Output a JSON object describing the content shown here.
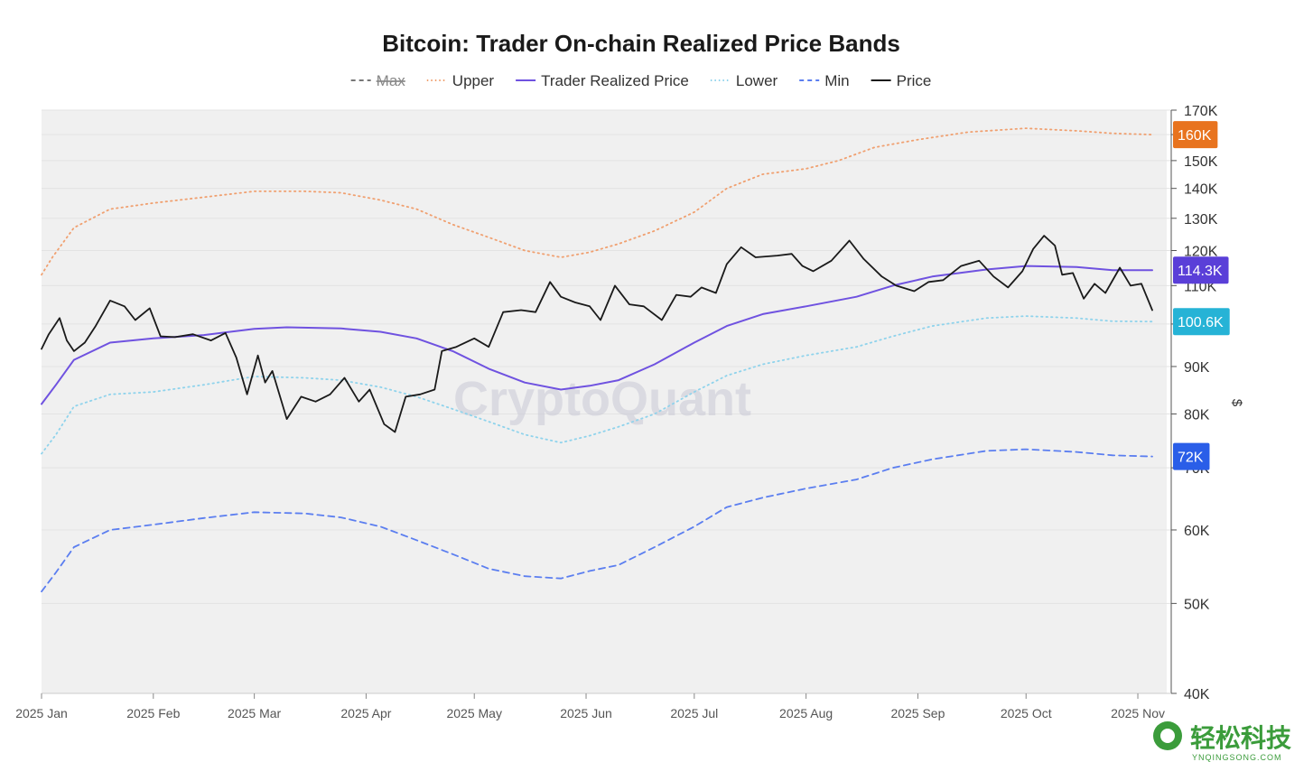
{
  "chart_data": {
    "type": "line",
    "title": "Bitcoin: Trader On-chain Realized Price Bands",
    "ylabel": "$",
    "yscale": "log",
    "ylim": [
      40000,
      170000
    ],
    "xlim": [
      "2025-01-01",
      "2025-11-06"
    ],
    "grid": true,
    "legend_position": "top-center",
    "watermark": "CryptoQuant",
    "x_ticks": [
      "2025 Jan",
      "2025 Feb",
      "2025 Mar",
      "2025 Apr",
      "2025 May",
      "2025 Jun",
      "2025 Jul",
      "2025 Aug",
      "2025 Sep",
      "2025 Oct",
      "2025 Nov"
    ],
    "y_ticks": [
      "170K",
      "160K",
      "150K",
      "140K",
      "130K",
      "120K",
      "110K",
      "100K",
      "90K",
      "80K",
      "70K",
      "60K",
      "50K",
      "40K"
    ],
    "badges": [
      {
        "label": "160K",
        "value": 160000,
        "color": "#e8731e"
      },
      {
        "label": "114.3K",
        "value": 114300,
        "color": "#5a3fd8"
      },
      {
        "label": "100.6K",
        "value": 100600,
        "color": "#26b3d6"
      },
      {
        "label": "72K",
        "value": 72000,
        "color": "#2a5ee8"
      }
    ],
    "series": [
      {
        "name": "Max",
        "color": "#777777",
        "style": "dashed",
        "points": []
      },
      {
        "name": "Upper",
        "color": "#f0a070",
        "style": "dotted",
        "points": [
          [
            "2025-01-01",
            113000
          ],
          [
            "2025-01-04",
            118000
          ],
          [
            "2025-01-10",
            127000
          ],
          [
            "2025-01-20",
            133000
          ],
          [
            "2025-02-01",
            135000
          ],
          [
            "2025-02-15",
            137000
          ],
          [
            "2025-03-01",
            139000
          ],
          [
            "2025-03-15",
            139000
          ],
          [
            "2025-03-25",
            138500
          ],
          [
            "2025-04-05",
            136000
          ],
          [
            "2025-04-15",
            133000
          ],
          [
            "2025-04-25",
            128000
          ],
          [
            "2025-05-05",
            124000
          ],
          [
            "2025-05-15",
            120000
          ],
          [
            "2025-05-25",
            118000
          ],
          [
            "2025-06-02",
            119500
          ],
          [
            "2025-06-10",
            122000
          ],
          [
            "2025-06-20",
            126000
          ],
          [
            "2025-07-01",
            132000
          ],
          [
            "2025-07-10",
            140000
          ],
          [
            "2025-07-20",
            145000
          ],
          [
            "2025-08-01",
            147000
          ],
          [
            "2025-08-10",
            150000
          ],
          [
            "2025-08-20",
            155000
          ],
          [
            "2025-09-01",
            158000
          ],
          [
            "2025-09-15",
            161000
          ],
          [
            "2025-10-01",
            162500
          ],
          [
            "2025-10-15",
            161500
          ],
          [
            "2025-10-25",
            160500
          ],
          [
            "2025-11-05",
            160000
          ]
        ]
      },
      {
        "name": "Trader Realized Price",
        "color": "#6f52e0",
        "style": "solid",
        "points": [
          [
            "2025-01-01",
            82000
          ],
          [
            "2025-01-05",
            86000
          ],
          [
            "2025-01-10",
            91500
          ],
          [
            "2025-01-20",
            95500
          ],
          [
            "2025-02-01",
            96500
          ],
          [
            "2025-02-15",
            97300
          ],
          [
            "2025-03-01",
            98800
          ],
          [
            "2025-03-10",
            99200
          ],
          [
            "2025-03-25",
            98900
          ],
          [
            "2025-04-05",
            98100
          ],
          [
            "2025-04-15",
            96500
          ],
          [
            "2025-04-25",
            93500
          ],
          [
            "2025-05-05",
            89500
          ],
          [
            "2025-05-15",
            86500
          ],
          [
            "2025-05-25",
            85000
          ],
          [
            "2025-06-02",
            85800
          ],
          [
            "2025-06-10",
            87000
          ],
          [
            "2025-06-20",
            90500
          ],
          [
            "2025-07-01",
            95500
          ],
          [
            "2025-07-10",
            99500
          ],
          [
            "2025-07-20",
            102500
          ],
          [
            "2025-08-01",
            104500
          ],
          [
            "2025-08-15",
            107000
          ],
          [
            "2025-08-25",
            110000
          ],
          [
            "2025-09-05",
            112500
          ],
          [
            "2025-09-20",
            114500
          ],
          [
            "2025-10-01",
            115500
          ],
          [
            "2025-10-15",
            115200
          ],
          [
            "2025-10-25",
            114300
          ],
          [
            "2025-11-05",
            114300
          ]
        ]
      },
      {
        "name": "Lower",
        "color": "#8fd3ec",
        "style": "dotted",
        "points": [
          [
            "2025-01-01",
            72500
          ],
          [
            "2025-01-05",
            76000
          ],
          [
            "2025-01-10",
            81500
          ],
          [
            "2025-01-20",
            84000
          ],
          [
            "2025-02-01",
            84500
          ],
          [
            "2025-02-15",
            86000
          ],
          [
            "2025-03-01",
            87800
          ],
          [
            "2025-03-15",
            87500
          ],
          [
            "2025-03-25",
            87000
          ],
          [
            "2025-04-05",
            85500
          ],
          [
            "2025-04-15",
            83500
          ],
          [
            "2025-04-25",
            81000
          ],
          [
            "2025-05-05",
            78500
          ],
          [
            "2025-05-15",
            76000
          ],
          [
            "2025-05-25",
            74500
          ],
          [
            "2025-06-02",
            75800
          ],
          [
            "2025-06-10",
            77500
          ],
          [
            "2025-06-20",
            80000
          ],
          [
            "2025-07-01",
            84500
          ],
          [
            "2025-07-10",
            88000
          ],
          [
            "2025-07-20",
            90500
          ],
          [
            "2025-08-01",
            92500
          ],
          [
            "2025-08-15",
            94500
          ],
          [
            "2025-08-25",
            97000
          ],
          [
            "2025-09-05",
            99500
          ],
          [
            "2025-09-20",
            101500
          ],
          [
            "2025-10-01",
            102000
          ],
          [
            "2025-10-15",
            101500
          ],
          [
            "2025-10-25",
            100700
          ],
          [
            "2025-11-05",
            100600
          ]
        ]
      },
      {
        "name": "Min",
        "color": "#5b7ef0",
        "style": "dashed",
        "points": [
          [
            "2025-01-01",
            51500
          ],
          [
            "2025-01-05",
            54000
          ],
          [
            "2025-01-10",
            57500
          ],
          [
            "2025-01-20",
            60000
          ],
          [
            "2025-02-01",
            60800
          ],
          [
            "2025-02-15",
            61800
          ],
          [
            "2025-03-01",
            62700
          ],
          [
            "2025-03-15",
            62500
          ],
          [
            "2025-03-25",
            61900
          ],
          [
            "2025-04-05",
            60500
          ],
          [
            "2025-04-15",
            58500
          ],
          [
            "2025-04-25",
            56500
          ],
          [
            "2025-05-05",
            54500
          ],
          [
            "2025-05-15",
            53500
          ],
          [
            "2025-05-25",
            53200
          ],
          [
            "2025-06-02",
            54200
          ],
          [
            "2025-06-10",
            55000
          ],
          [
            "2025-06-20",
            57500
          ],
          [
            "2025-07-01",
            60500
          ],
          [
            "2025-07-10",
            63500
          ],
          [
            "2025-07-20",
            65000
          ],
          [
            "2025-08-01",
            66500
          ],
          [
            "2025-08-15",
            68000
          ],
          [
            "2025-08-25",
            70000
          ],
          [
            "2025-09-05",
            71500
          ],
          [
            "2025-09-20",
            73000
          ],
          [
            "2025-10-01",
            73300
          ],
          [
            "2025-10-15",
            72800
          ],
          [
            "2025-10-25",
            72200
          ],
          [
            "2025-11-05",
            72000
          ]
        ]
      },
      {
        "name": "Price",
        "color": "#1a1a1a",
        "style": "solid",
        "points": [
          [
            "2025-01-01",
            94000
          ],
          [
            "2025-01-03",
            97500
          ],
          [
            "2025-01-06",
            101500
          ],
          [
            "2025-01-08",
            96000
          ],
          [
            "2025-01-10",
            93500
          ],
          [
            "2025-01-13",
            95500
          ],
          [
            "2025-01-16",
            99500
          ],
          [
            "2025-01-20",
            106000
          ],
          [
            "2025-01-24",
            104500
          ],
          [
            "2025-01-27",
            101000
          ],
          [
            "2025-01-31",
            104000
          ],
          [
            "2025-02-03",
            97000
          ],
          [
            "2025-02-07",
            96800
          ],
          [
            "2025-02-12",
            97500
          ],
          [
            "2025-02-17",
            96000
          ],
          [
            "2025-02-21",
            97800
          ],
          [
            "2025-02-24",
            92000
          ],
          [
            "2025-02-27",
            84000
          ],
          [
            "2025-03-02",
            92500
          ],
          [
            "2025-03-04",
            86500
          ],
          [
            "2025-03-06",
            89000
          ],
          [
            "2025-03-10",
            79000
          ],
          [
            "2025-03-14",
            83500
          ],
          [
            "2025-03-18",
            82500
          ],
          [
            "2025-03-22",
            84000
          ],
          [
            "2025-03-26",
            87500
          ],
          [
            "2025-03-30",
            82500
          ],
          [
            "2025-04-02",
            85000
          ],
          [
            "2025-04-06",
            78000
          ],
          [
            "2025-04-09",
            76500
          ],
          [
            "2025-04-12",
            83500
          ],
          [
            "2025-04-16",
            84000
          ],
          [
            "2025-04-20",
            85000
          ],
          [
            "2025-04-22",
            93500
          ],
          [
            "2025-04-26",
            94500
          ],
          [
            "2025-05-01",
            96500
          ],
          [
            "2025-05-05",
            94500
          ],
          [
            "2025-05-09",
            103000
          ],
          [
            "2025-05-14",
            103500
          ],
          [
            "2025-05-18",
            103000
          ],
          [
            "2025-05-22",
            111000
          ],
          [
            "2025-05-25",
            107000
          ],
          [
            "2025-05-29",
            105500
          ],
          [
            "2025-06-02",
            104500
          ],
          [
            "2025-06-05",
            101000
          ],
          [
            "2025-06-09",
            110000
          ],
          [
            "2025-06-13",
            105000
          ],
          [
            "2025-06-17",
            104500
          ],
          [
            "2025-06-22",
            101000
          ],
          [
            "2025-06-26",
            107500
          ],
          [
            "2025-06-30",
            107000
          ],
          [
            "2025-07-03",
            109500
          ],
          [
            "2025-07-07",
            108000
          ],
          [
            "2025-07-10",
            116000
          ],
          [
            "2025-07-14",
            121000
          ],
          [
            "2025-07-18",
            118000
          ],
          [
            "2025-07-24",
            118500
          ],
          [
            "2025-07-28",
            119000
          ],
          [
            "2025-07-31",
            115500
          ],
          [
            "2025-08-03",
            114000
          ],
          [
            "2025-08-08",
            117000
          ],
          [
            "2025-08-13",
            123000
          ],
          [
            "2025-08-17",
            117500
          ],
          [
            "2025-08-22",
            112500
          ],
          [
            "2025-08-26",
            110000
          ],
          [
            "2025-08-31",
            108500
          ],
          [
            "2025-09-04",
            111000
          ],
          [
            "2025-09-08",
            111500
          ],
          [
            "2025-09-13",
            115500
          ],
          [
            "2025-09-18",
            117000
          ],
          [
            "2025-09-22",
            112500
          ],
          [
            "2025-09-26",
            109500
          ],
          [
            "2025-09-30",
            114000
          ],
          [
            "2025-10-03",
            120500
          ],
          [
            "2025-10-06",
            124500
          ],
          [
            "2025-10-09",
            121500
          ],
          [
            "2025-10-11",
            113000
          ],
          [
            "2025-10-14",
            113500
          ],
          [
            "2025-10-17",
            106500
          ],
          [
            "2025-10-20",
            110500
          ],
          [
            "2025-10-23",
            108000
          ],
          [
            "2025-10-27",
            115000
          ],
          [
            "2025-10-30",
            110000
          ],
          [
            "2025-11-02",
            110500
          ],
          [
            "2025-11-05",
            103500
          ]
        ]
      }
    ]
  },
  "logo": {
    "name": "轻松科技",
    "domain": "YNQINGSONG.COM"
  }
}
